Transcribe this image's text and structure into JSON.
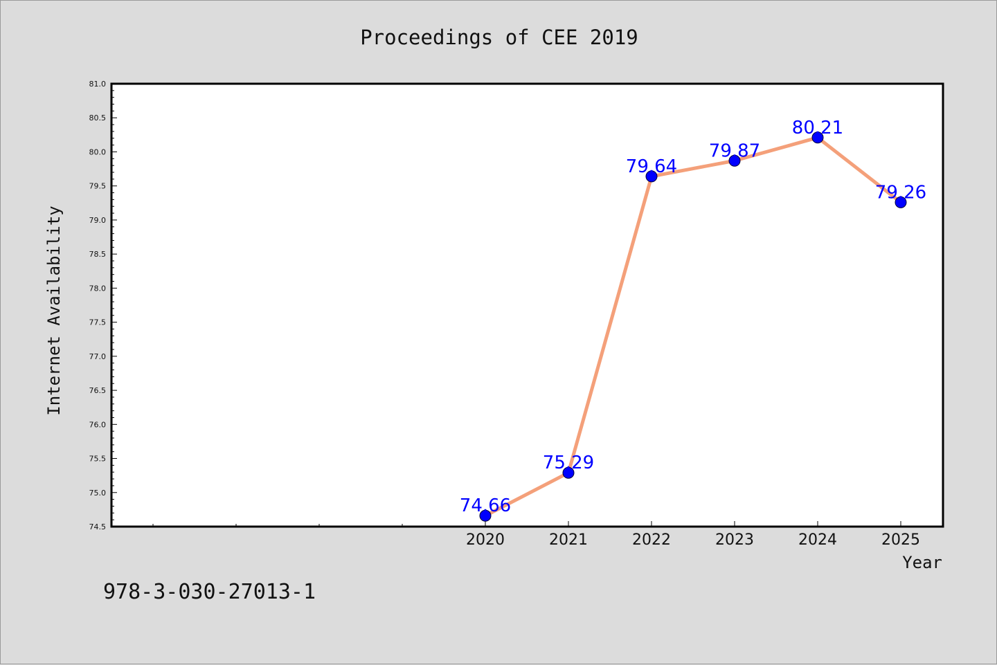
{
  "chart_data": {
    "type": "line",
    "title": "Proceedings of CEE 2019",
    "xlabel": "Year",
    "ylabel": "Internet Availability",
    "x": [
      "2020",
      "2021",
      "2022",
      "2023",
      "2024",
      "2025"
    ],
    "series": [
      {
        "values": [
          74.66,
          75.29,
          79.64,
          79.87,
          80.21,
          79.26
        ]
      }
    ],
    "data_labels": [
      "74.66",
      "75.29",
      "79.64",
      "79.87",
      "80.21",
      "79.26"
    ],
    "yticks": [
      "74.5",
      "75.0",
      "75.5",
      "76.0",
      "76.5",
      "77.0",
      "77.5",
      "78.0",
      "78.5",
      "79.0",
      "79.5",
      "80.0",
      "80.5",
      "81.0"
    ],
    "ylim": [
      74.5,
      81.0
    ],
    "grid": false,
    "colors": {
      "line": "#f4a07a",
      "marker": "#0000ff",
      "label": "#0000ff"
    }
  },
  "footer": {
    "isbn": "978-3-030-27013-1"
  }
}
